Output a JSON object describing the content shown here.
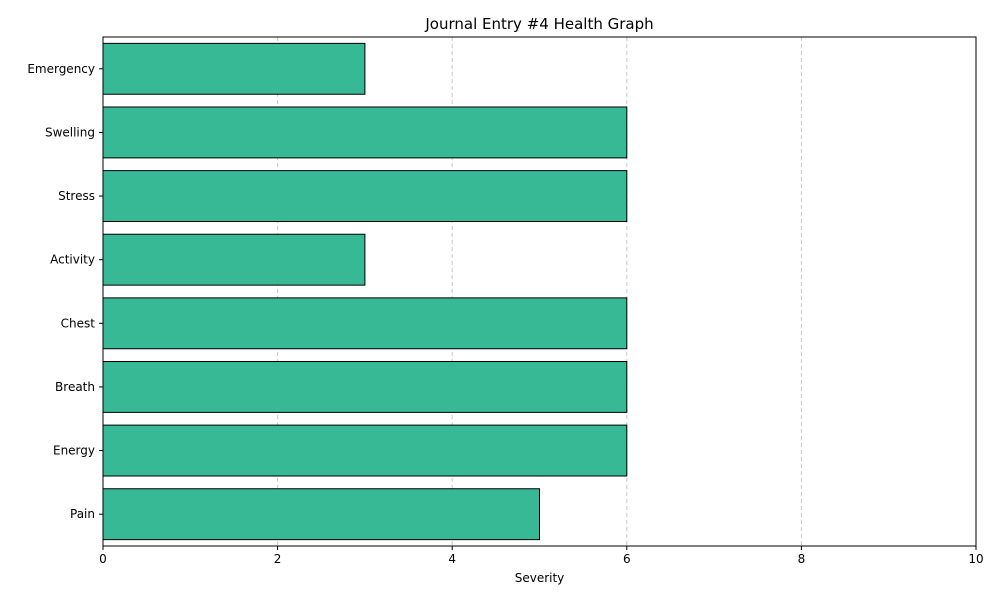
{
  "chart_data": {
    "type": "bar",
    "orientation": "horizontal",
    "title": "Journal Entry #4 Health Graph",
    "xlabel": "Severity",
    "ylabel": "",
    "categories": [
      "Pain",
      "Energy",
      "Breath",
      "Chest",
      "Activity",
      "Stress",
      "Swelling",
      "Emergency"
    ],
    "values": [
      5,
      6,
      6,
      6,
      3,
      6,
      6,
      3
    ],
    "xlim": [
      0,
      10
    ],
    "xticks": [
      "0",
      "2",
      "4",
      "6",
      "8",
      "10"
    ],
    "grid": "x-dashed",
    "legend": "none",
    "colors": {
      "bar_fill": "#38b996",
      "bar_edge": "#000000",
      "grid": "#c8c8c8"
    }
  }
}
